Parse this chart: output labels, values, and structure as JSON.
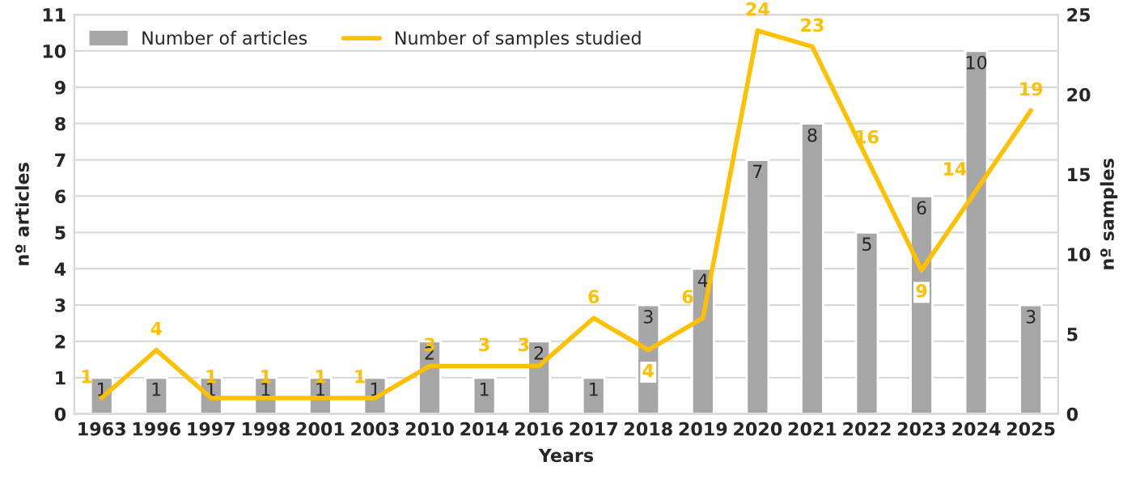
{
  "chart_data": {
    "type": "bar",
    "xlabel": "Years",
    "ylabel": "nº articles",
    "y2label": "nº samples",
    "categories": [
      "1963",
      "1996",
      "1997",
      "1998",
      "2001",
      "2003",
      "2010",
      "2014",
      "2016",
      "2017",
      "2018",
      "2019",
      "2020",
      "2021",
      "2022",
      "2023",
      "2024",
      "2025"
    ],
    "series": [
      {
        "name": "Number of articles",
        "color": "#a6a6a6",
        "values": [
          1,
          1,
          1,
          1,
          1,
          1,
          2,
          1,
          2,
          1,
          3,
          4,
          7,
          8,
          5,
          6,
          10,
          3
        ]
      },
      {
        "name": "Number of samples studied",
        "type": "line",
        "axis": "y2",
        "color": "#ffc000",
        "values": [
          1,
          4,
          1,
          1,
          1,
          1,
          3,
          3,
          3,
          6,
          4,
          6,
          24,
          23,
          16,
          9,
          14,
          19
        ]
      }
    ],
    "ylim": [
      0,
      11
    ],
    "yticks": [
      0,
      1,
      2,
      3,
      4,
      5,
      6,
      7,
      8,
      9,
      10,
      11
    ],
    "y2lim": [
      0,
      25
    ],
    "y2ticks": [
      0,
      5,
      10,
      15,
      20,
      25
    ],
    "grid": "y",
    "legend": "top left",
    "data_labels": true,
    "marker": "none",
    "line_style": "solid"
  }
}
